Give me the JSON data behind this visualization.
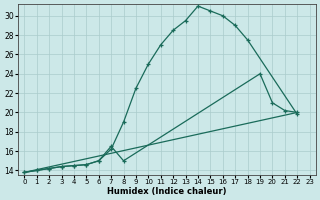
{
  "xlabel": "Humidex (Indice chaleur)",
  "xlim": [
    -0.5,
    23.5
  ],
  "ylim": [
    13.5,
    31.2
  ],
  "yticks": [
    14,
    16,
    18,
    20,
    22,
    24,
    26,
    28,
    30
  ],
  "xticks": [
    0,
    1,
    2,
    3,
    4,
    5,
    6,
    7,
    8,
    9,
    10,
    11,
    12,
    13,
    14,
    15,
    16,
    17,
    18,
    19,
    20,
    21,
    22,
    23
  ],
  "xtick_labels": [
    "0",
    "1",
    "2",
    "3",
    "4",
    "5",
    "6",
    "7",
    "8",
    "9",
    "10",
    "11",
    "12",
    "13",
    "14",
    "15",
    "16",
    "17",
    "18",
    "19",
    "20",
    "21",
    "22",
    "23"
  ],
  "background_color": "#cce8e8",
  "grid_color": "#aacccc",
  "line_color": "#1a6b5a",
  "line1_x": [
    0,
    1,
    2,
    3,
    4,
    5,
    6,
    7,
    8,
    9,
    10,
    11,
    12,
    13,
    14,
    15,
    16,
    17,
    18,
    22
  ],
  "line1_y": [
    13.8,
    14.0,
    14.2,
    14.4,
    14.5,
    14.6,
    15.0,
    16.2,
    19.0,
    22.5,
    25.0,
    27.0,
    28.5,
    29.5,
    31.0,
    30.5,
    30.0,
    29.0,
    27.5,
    19.8
  ],
  "line2_x": [
    0,
    1,
    2,
    3,
    4,
    5,
    6,
    7,
    8,
    19,
    20,
    21,
    22
  ],
  "line2_y": [
    13.8,
    14.0,
    14.2,
    14.4,
    14.5,
    14.6,
    15.0,
    16.5,
    15.0,
    24.0,
    21.0,
    20.2,
    20.0
  ],
  "line3_x": [
    0,
    22
  ],
  "line3_y": [
    13.8,
    20.0
  ]
}
